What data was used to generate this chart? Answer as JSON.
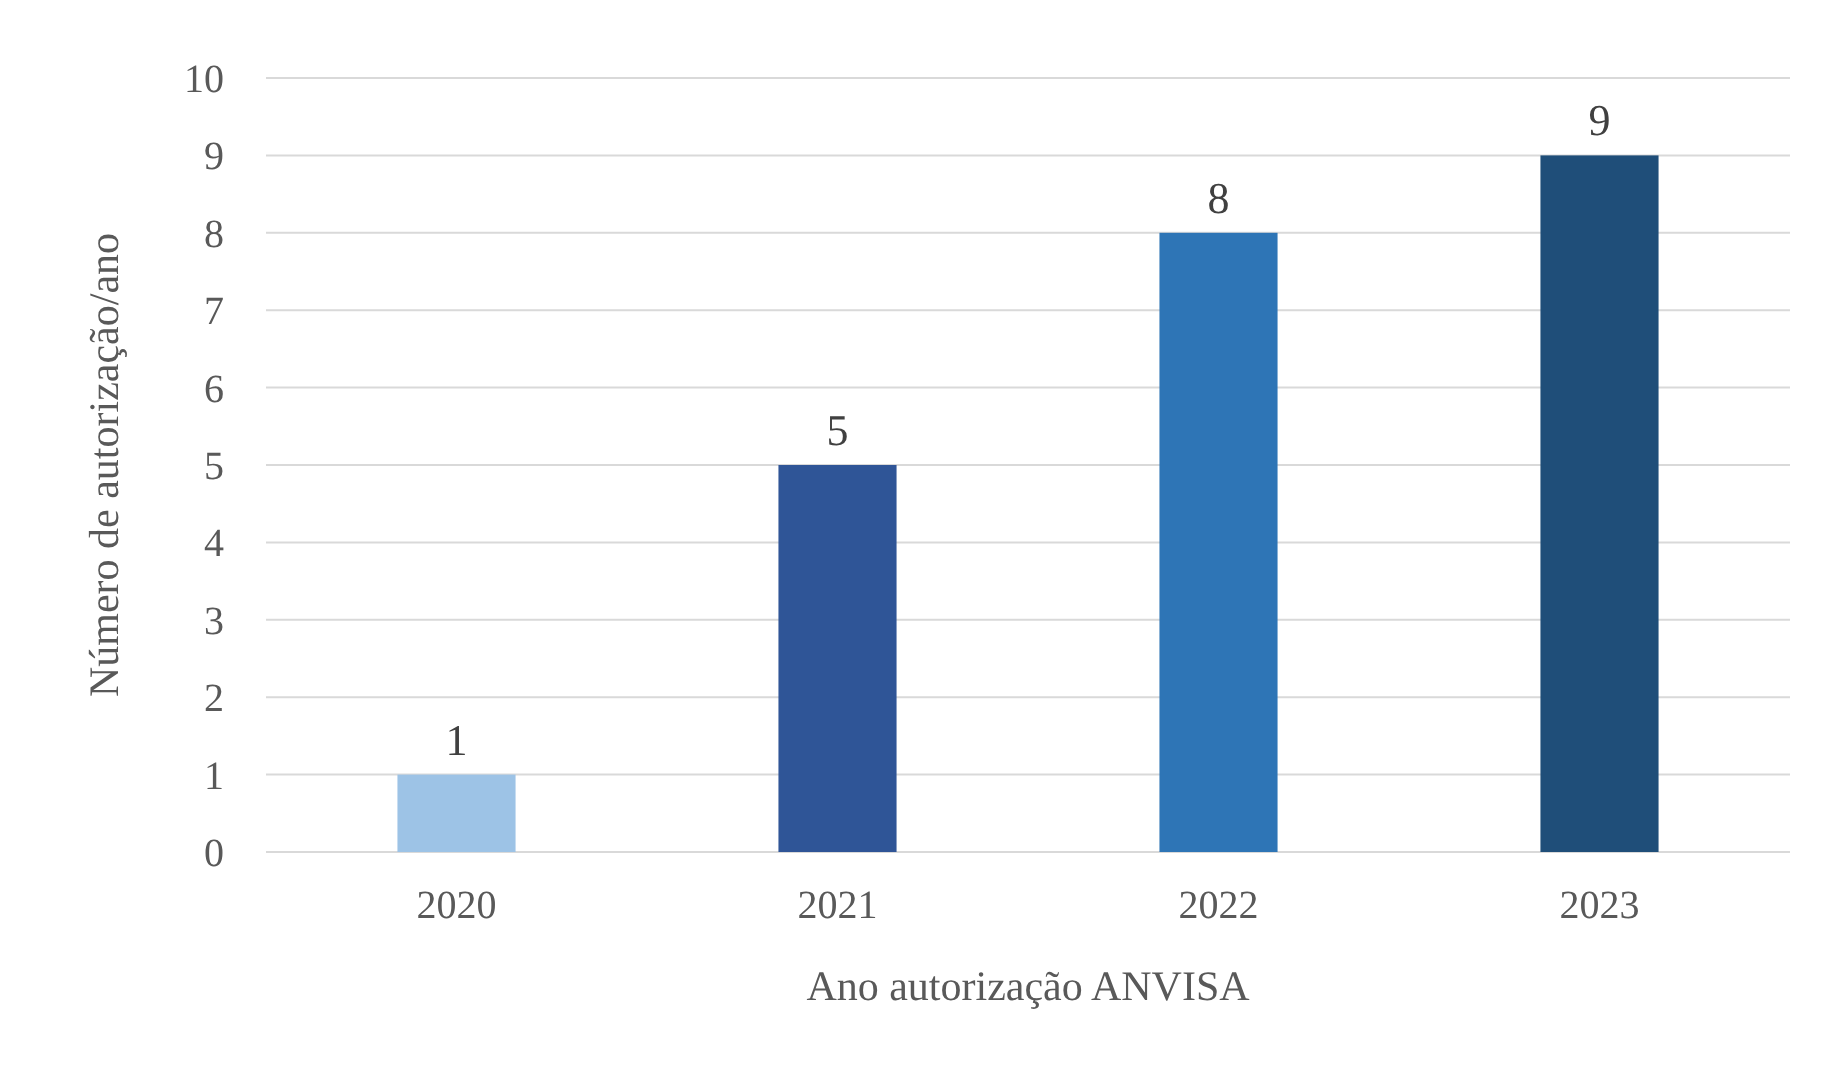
{
  "chart_data": {
    "type": "bar",
    "xlabel": "Ano autorização ANVISA",
    "ylabel": "Número de autorização/ano",
    "categories": [
      "2020",
      "2021",
      "2022",
      "2023"
    ],
    "values": [
      1,
      5,
      8,
      9
    ],
    "colors": [
      "#9dc3e6",
      "#2f5597",
      "#2e75b6",
      "#1f4e79"
    ],
    "ylim": [
      0,
      10
    ],
    "yticks": [
      0,
      1,
      2,
      3,
      4,
      5,
      6,
      7,
      8,
      9,
      10
    ],
    "grid": "y",
    "data_labels": true
  }
}
